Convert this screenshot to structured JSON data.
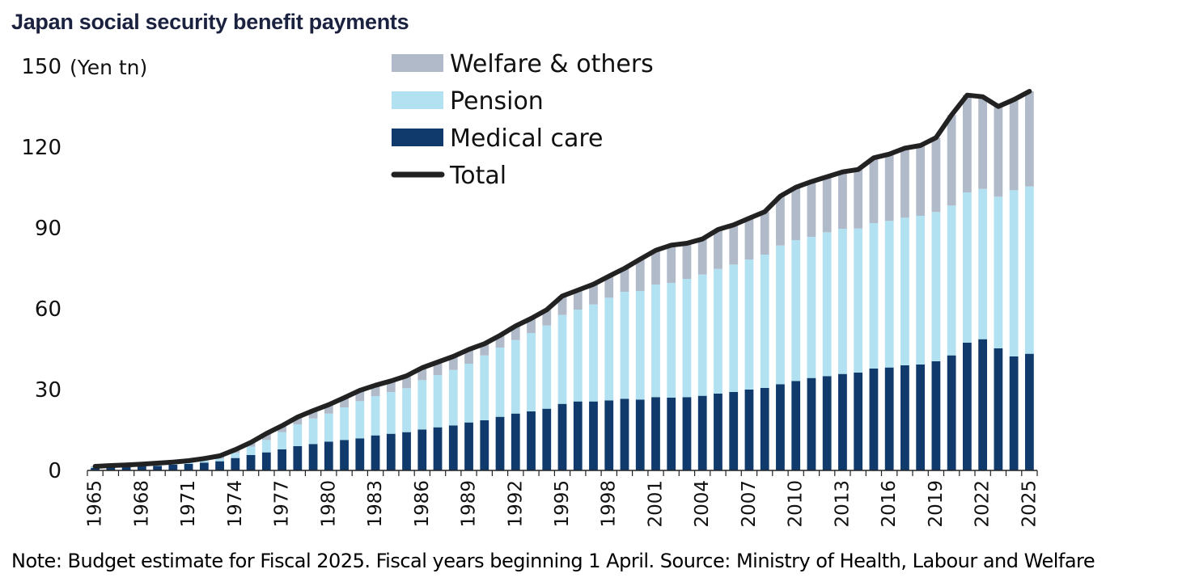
{
  "chart_data": {
    "type": "bar",
    "title": "Japan social security benefit payments",
    "ylabel": "(Yen tn)",
    "xlabel": "",
    "ylim": [
      0,
      150
    ],
    "yticks": [
      0,
      30,
      60,
      90,
      120,
      150
    ],
    "xtick_labels": [
      "1965",
      "1968",
      "1971",
      "1974",
      "1977",
      "1980",
      "1983",
      "1986",
      "1989",
      "1992",
      "1995",
      "1998",
      "2001",
      "2004",
      "2007",
      "2010",
      "2013",
      "2016",
      "2019",
      "2022",
      "2025"
    ],
    "legend": {
      "position": "top-center",
      "entries": [
        "Welfare & others",
        "Pension",
        "Medical care",
        "Total"
      ]
    },
    "x": [
      1965,
      1966,
      1967,
      1968,
      1969,
      1970,
      1971,
      1972,
      1973,
      1974,
      1975,
      1976,
      1977,
      1978,
      1979,
      1980,
      1981,
      1982,
      1983,
      1984,
      1985,
      1986,
      1987,
      1988,
      1989,
      1990,
      1991,
      1992,
      1993,
      1994,
      1995,
      1996,
      1997,
      1998,
      1999,
      2000,
      2001,
      2002,
      2003,
      2004,
      2005,
      2006,
      2007,
      2008,
      2009,
      2010,
      2011,
      2012,
      2013,
      2014,
      2015,
      2016,
      2017,
      2018,
      2019,
      2020,
      2021,
      2022,
      2023,
      2024,
      2025
    ],
    "series": [
      {
        "name": "Medical care",
        "color": "#0f3a6b",
        "values": [
          0.9,
          1.1,
          1.3,
          1.5,
          1.7,
          2.1,
          2.4,
          2.9,
          3.4,
          4.6,
          5.7,
          6.7,
          7.8,
          9.0,
          9.8,
          10.7,
          11.3,
          11.9,
          13.0,
          13.6,
          14.2,
          15.2,
          16.0,
          16.7,
          17.8,
          18.6,
          19.9,
          21.1,
          21.9,
          22.9,
          24.7,
          25.6,
          25.6,
          26.0,
          26.6,
          26.3,
          27.2,
          27.0,
          27.2,
          27.7,
          28.5,
          29.1,
          30.0,
          30.6,
          32.0,
          33.2,
          34.3,
          35.0,
          35.8,
          36.3,
          37.8,
          38.2,
          39.0,
          39.3,
          40.5,
          42.7,
          47.4,
          48.7,
          45.3,
          42.3,
          43.3
        ]
      },
      {
        "name": "Pension",
        "color": "#b2e1f2",
        "values": [
          0.3,
          0.3,
          0.3,
          0.4,
          0.5,
          0.5,
          0.6,
          0.8,
          1.0,
          1.9,
          3.1,
          4.6,
          6.4,
          8.1,
          9.5,
          10.4,
          12.1,
          13.8,
          14.6,
          15.5,
          16.3,
          18.3,
          19.4,
          20.6,
          21.8,
          24.1,
          25.7,
          27.3,
          29.1,
          30.9,
          33.0,
          34.1,
          36.0,
          38.1,
          39.7,
          40.3,
          41.8,
          42.6,
          43.9,
          45.0,
          46.3,
          47.3,
          48.3,
          49.5,
          51.5,
          52.3,
          52.4,
          53.4,
          53.9,
          53.5,
          54.0,
          54.4,
          54.8,
          55.2,
          55.4,
          55.6,
          55.8,
          55.8,
          56.3,
          61.7,
          62.1
        ]
      },
      {
        "name": "Welfare & others",
        "color": "#b1bac9",
        "values": [
          0.3,
          0.4,
          0.4,
          0.4,
          0.5,
          0.5,
          0.6,
          0.7,
          1.0,
          1.2,
          1.6,
          2.4,
          2.4,
          2.7,
          2.9,
          3.3,
          3.6,
          4.0,
          4.0,
          4.1,
          4.6,
          4.6,
          4.8,
          5.0,
          5.3,
          4.3,
          4.5,
          5.2,
          5.4,
          5.8,
          7.0,
          7.2,
          7.5,
          8.0,
          8.7,
          11.8,
          12.7,
          14.0,
          13.2,
          13.2,
          14.6,
          14.7,
          15.3,
          15.9,
          18.3,
          19.6,
          20.5,
          20.6,
          21.1,
          21.9,
          24.2,
          24.8,
          25.8,
          26.1,
          27.6,
          33.6,
          36.1,
          34.2,
          33.5,
          33.6,
          35.3
        ]
      },
      {
        "name": "Total",
        "color": "#222222",
        "values": [
          1.5,
          1.8,
          2.0,
          2.3,
          2.7,
          3.1,
          3.6,
          4.4,
          5.4,
          7.7,
          10.4,
          13.7,
          16.6,
          19.8,
          22.2,
          24.4,
          27.0,
          29.7,
          31.6,
          33.2,
          35.1,
          38.1,
          40.2,
          42.3,
          44.9,
          47.0,
          50.1,
          53.6,
          56.4,
          59.6,
          64.7,
          66.9,
          69.1,
          72.1,
          75.0,
          78.4,
          81.7,
          83.6,
          84.3,
          85.9,
          89.4,
          91.1,
          93.6,
          96.0,
          101.8,
          105.1,
          107.2,
          109.0,
          110.8,
          111.7,
          116.0,
          117.4,
          119.6,
          120.6,
          123.5,
          131.9,
          139.3,
          138.7,
          135.1,
          137.6,
          140.7
        ]
      }
    ]
  },
  "note": "Note: Budget estimate for Fiscal 2025. Fiscal years beginning 1 April. Source: Ministry of Health, Labour and Welfare"
}
